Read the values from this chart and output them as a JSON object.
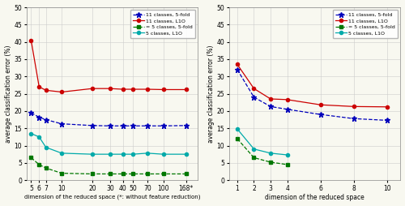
{
  "left": {
    "xlim": [
      4.5,
      220
    ],
    "ylim": [
      0,
      50
    ],
    "yticks": [
      0,
      5,
      10,
      15,
      20,
      25,
      30,
      35,
      40,
      45,
      50
    ],
    "xtick_vals": [
      5,
      6,
      7,
      10,
      20,
      30,
      40,
      50,
      70,
      100,
      168
    ],
    "xtick_labels": [
      "5",
      "6",
      "7",
      "10",
      "20",
      "30",
      "40",
      "50",
      "70",
      "100",
      "168*"
    ],
    "series": {
      "c11_5fold": {
        "x": [
          5,
          6,
          7,
          10,
          20,
          30,
          40,
          50,
          70,
          100,
          168
        ],
        "y": [
          19.5,
          18.2,
          17.5,
          16.3,
          15.8,
          15.7,
          15.7,
          15.7,
          15.7,
          15.7,
          15.8
        ],
        "color": "#0000BB",
        "linestyle": "--",
        "marker": "*",
        "markersize": 5,
        "label": "11 classes, 5-fold"
      },
      "c11_L1O": {
        "x": [
          5,
          6,
          7,
          10,
          20,
          30,
          40,
          50,
          70,
          100,
          168
        ],
        "y": [
          40.5,
          27.0,
          26.0,
          25.5,
          26.5,
          26.5,
          26.3,
          26.3,
          26.3,
          26.2,
          26.2
        ],
        "color": "#CC0000",
        "linestyle": "-",
        "marker": "o",
        "markersize": 3,
        "label": "11 classes, L1O"
      },
      "c5_5fold": {
        "x": [
          5,
          6,
          7,
          10,
          20,
          30,
          40,
          50,
          70,
          100,
          168
        ],
        "y": [
          6.5,
          4.5,
          3.5,
          2.0,
          1.8,
          1.8,
          1.8,
          1.8,
          1.8,
          1.8,
          1.8
        ],
        "color": "#007700",
        "linestyle": "--",
        "marker": "s",
        "markersize": 3,
        "label": "= 5 classes, 5-fold"
      },
      "c5_L1O": {
        "x": [
          5,
          6,
          7,
          10,
          20,
          30,
          40,
          50,
          70,
          100,
          168
        ],
        "y": [
          13.5,
          12.5,
          9.5,
          7.8,
          7.5,
          7.5,
          7.5,
          7.5,
          7.8,
          7.5,
          7.5
        ],
        "color": "#00AAAA",
        "linestyle": "-",
        "marker": "o",
        "markersize": 3,
        "label": "5 classes, L1O"
      }
    }
  },
  "right": {
    "xlim": [
      0.5,
      10.8
    ],
    "ylim": [
      0,
      50
    ],
    "yticks": [
      0,
      5,
      10,
      15,
      20,
      25,
      30,
      35,
      40,
      45,
      50
    ],
    "xtick_vals": [
      1,
      2,
      3,
      4,
      6,
      8,
      10
    ],
    "xtick_labels": [
      "1",
      "2",
      "3",
      "4",
      "6",
      "8",
      "10"
    ],
    "series": {
      "c11_5fold": {
        "x": [
          1,
          2,
          3,
          4,
          6,
          8,
          10
        ],
        "y": [
          32.0,
          24.0,
          21.3,
          20.5,
          19.0,
          17.8,
          17.3
        ],
        "color": "#0000BB",
        "linestyle": "--",
        "marker": "*",
        "markersize": 5,
        "label": "11 classes, 5-fold"
      },
      "c11_L1O": {
        "x": [
          1,
          2,
          3,
          4,
          6,
          8,
          10
        ],
        "y": [
          33.5,
          26.5,
          23.5,
          23.3,
          21.8,
          21.3,
          21.2
        ],
        "color": "#CC0000",
        "linestyle": "-",
        "marker": "o",
        "markersize": 3,
        "label": "11 classes, L1O"
      },
      "c5_5fold": {
        "x": [
          1,
          2,
          3,
          4
        ],
        "y": [
          12.0,
          6.5,
          5.2,
          4.5
        ],
        "color": "#007700",
        "linestyle": "--",
        "marker": "s",
        "markersize": 3,
        "label": "= 5 classes, 5-fold"
      },
      "c5_L1O": {
        "x": [
          1,
          2,
          3,
          4
        ],
        "y": [
          14.8,
          9.0,
          7.8,
          7.3
        ],
        "color": "#00AAAA",
        "linestyle": "-",
        "marker": "o",
        "markersize": 3,
        "label": "5 classes, L1O"
      }
    }
  },
  "ylabel": "average classification error (%)",
  "xlabel_left": "dimension of the reduced space (*: without feature reduction)",
  "xlabel_right": "dimension of the reduced space",
  "legend_labels": [
    "11 classes, 5-fold",
    "11 classes, L1O",
    "= 5 classes, 5-fold",
    "5 classes, L1O"
  ],
  "grid_color": "#cccccc",
  "bg_color": "#f8f8f0"
}
